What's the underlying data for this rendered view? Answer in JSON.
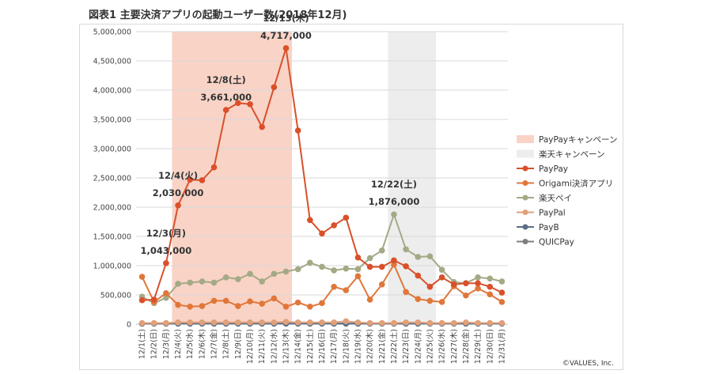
{
  "title": "図表1 主要決済アプリの起動ユーザー数(2018年12月)",
  "copyright": "©VALUES, Inc.",
  "chart_data": {
    "type": "line",
    "title": "図表1 主要決済アプリの起動ユーザー数(2018年12月)",
    "xlabel": "",
    "ylabel": "",
    "ylim": [
      0,
      5000000
    ],
    "yticks": [
      "0",
      "500,000",
      "1,000,000",
      "1,500,000",
      "2,000,000",
      "2,500,000",
      "3,000,000",
      "3,500,000",
      "4,000,000",
      "4,500,000",
      "5,000,000"
    ],
    "grid": true,
    "legend_position": "right",
    "categories": [
      "12/1(土)",
      "12/2(日)",
      "12/3(月)",
      "12/4(火)",
      "12/5(水)",
      "12/6(木)",
      "12/7(金)",
      "12/8(土)",
      "12/9(日)",
      "12/10(月)",
      "12/11(火)",
      "12/12(水)",
      "12/13(木)",
      "12/14(金)",
      "12/15(土)",
      "12/16(日)",
      "12/17(月)",
      "12/18(火)",
      "12/19(水)",
      "12/20(木)",
      "12/21(金)",
      "12/22(土)",
      "12/23(日)",
      "12/24(月)",
      "12/25(火)",
      "12/26(水)",
      "12/27(木)",
      "12/28(金)",
      "12/29(土)",
      "12/30(日)",
      "12/31(月)"
    ],
    "shaded_regions": [
      {
        "name": "PayPayキャンペーン",
        "start": "12/4(火)",
        "end": "12/13(木)",
        "color": "#f8d3c6"
      },
      {
        "name": "楽天キャンペーン",
        "start": "12/22(土)",
        "end": "12/25(火)",
        "color": "#ededed"
      }
    ],
    "series": [
      {
        "name": "PayPay",
        "color": "#d9502a",
        "values": [
          410000,
          420000,
          1043000,
          2030000,
          2470000,
          2460000,
          2680000,
          3661000,
          3780000,
          3760000,
          3370000,
          4050000,
          4717000,
          3310000,
          1780000,
          1550000,
          1690000,
          1820000,
          1140000,
          980000,
          980000,
          1090000,
          990000,
          830000,
          640000,
          800000,
          680000,
          700000,
          700000,
          640000,
          540000
        ]
      },
      {
        "name": "Origami決済アプリ",
        "color": "#e0773a",
        "values": [
          810000,
          380000,
          530000,
          330000,
          300000,
          310000,
          400000,
          400000,
          310000,
          390000,
          350000,
          440000,
          300000,
          370000,
          300000,
          360000,
          640000,
          580000,
          820000,
          420000,
          680000,
          1020000,
          550000,
          430000,
          400000,
          380000,
          650000,
          490000,
          610000,
          510000,
          380000
        ]
      },
      {
        "name": "楽天ペイ",
        "color": "#a4a986",
        "values": [
          470000,
          360000,
          450000,
          690000,
          710000,
          730000,
          710000,
          800000,
          770000,
          860000,
          730000,
          860000,
          900000,
          940000,
          1050000,
          980000,
          920000,
          950000,
          940000,
          1130000,
          1260000,
          1876000,
          1280000,
          1150000,
          1160000,
          930000,
          720000,
          700000,
          800000,
          780000,
          730000
        ]
      },
      {
        "name": "PayPal",
        "color": "#e0a07a",
        "values": [
          20000,
          20000,
          20000,
          30000,
          30000,
          30000,
          30000,
          30000,
          30000,
          30000,
          30000,
          30000,
          40000,
          30000,
          30000,
          30000,
          30000,
          50000,
          30000,
          20000,
          20000,
          20000,
          30000,
          30000,
          20000,
          20000,
          20000,
          30000,
          20000,
          20000,
          20000
        ]
      },
      {
        "name": "PayB",
        "color": "#5a6e86",
        "values": [
          10000,
          10000,
          10000,
          10000,
          10000,
          10000,
          10000,
          10000,
          10000,
          10000,
          10000,
          10000,
          10000,
          10000,
          10000,
          10000,
          10000,
          10000,
          10000,
          10000,
          10000,
          10000,
          10000,
          10000,
          10000,
          10000,
          10000,
          10000,
          10000,
          10000,
          10000
        ]
      },
      {
        "name": "QUICPay",
        "color": "#7f7f7f",
        "values": [
          10000,
          10000,
          10000,
          10000,
          10000,
          10000,
          10000,
          10000,
          10000,
          10000,
          10000,
          10000,
          10000,
          10000,
          10000,
          10000,
          10000,
          10000,
          10000,
          10000,
          10000,
          10000,
          10000,
          10000,
          10000,
          10000,
          10000,
          10000,
          10000,
          10000,
          10000
        ]
      }
    ],
    "annotations": [
      {
        "date": "12/3(月)",
        "lines": [
          "12/3(月)",
          "1,043,000"
        ]
      },
      {
        "date": "12/4(火)",
        "lines": [
          "12/4(火)",
          "2,030,000"
        ]
      },
      {
        "date": "12/8(土)",
        "lines": [
          "12/8(土)",
          "3,661,000"
        ]
      },
      {
        "date": "12/13(木)",
        "lines": [
          "12/13(木)",
          "4,717,000"
        ]
      },
      {
        "date": "12/22(土)",
        "lines": [
          "12/22(土)",
          "1,876,000"
        ]
      }
    ]
  }
}
